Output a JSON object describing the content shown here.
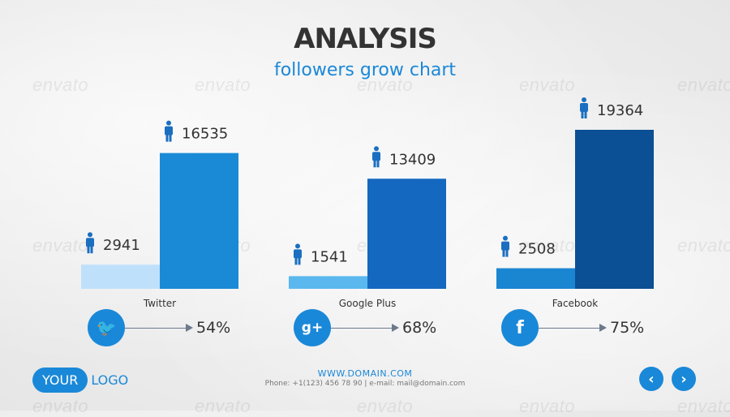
{
  "header": {
    "title": "ANALYSIS",
    "subtitle": "followers grow chart"
  },
  "watermark": "envato",
  "chart_data": {
    "type": "bar",
    "title": "ANALYSIS",
    "subtitle": "followers grow chart",
    "categories": [
      "Twitter",
      "Google Plus",
      "Facebook"
    ],
    "series": [
      {
        "values": [
          2941,
          1541,
          2508
        ]
      },
      {
        "values": [
          16535,
          13409,
          19364
        ]
      }
    ],
    "growth_labels": [
      "54%",
      "68%",
      "75%"
    ],
    "colors": {
      "twitter_before": "#bfe0fb",
      "twitter_after": "#1a8ad6",
      "gplus_before": "#5ab8ee",
      "gplus_after": "#1468c0",
      "facebook_before": "#1a86d2",
      "facebook_after": "#0b4f94"
    },
    "ylim": [
      0,
      19364
    ],
    "grid": false,
    "legend": "none",
    "icons": [
      "person-icon"
    ]
  },
  "social_badges": [
    {
      "icon": "twitter-bird-icon",
      "glyph": "🐦"
    },
    {
      "icon": "google-plus-icon",
      "glyph": "g+"
    },
    {
      "icon": "facebook-icon",
      "glyph": "f"
    }
  ],
  "footer": {
    "logo_pill": "YOUR",
    "logo_text": "LOGO",
    "domain": "WWW.DOMAIN.COM",
    "contact": "Phone: +1(123) 456 78 90 | e-mail: mail@domain.com",
    "prev_glyph": "‹",
    "next_glyph": "›"
  }
}
